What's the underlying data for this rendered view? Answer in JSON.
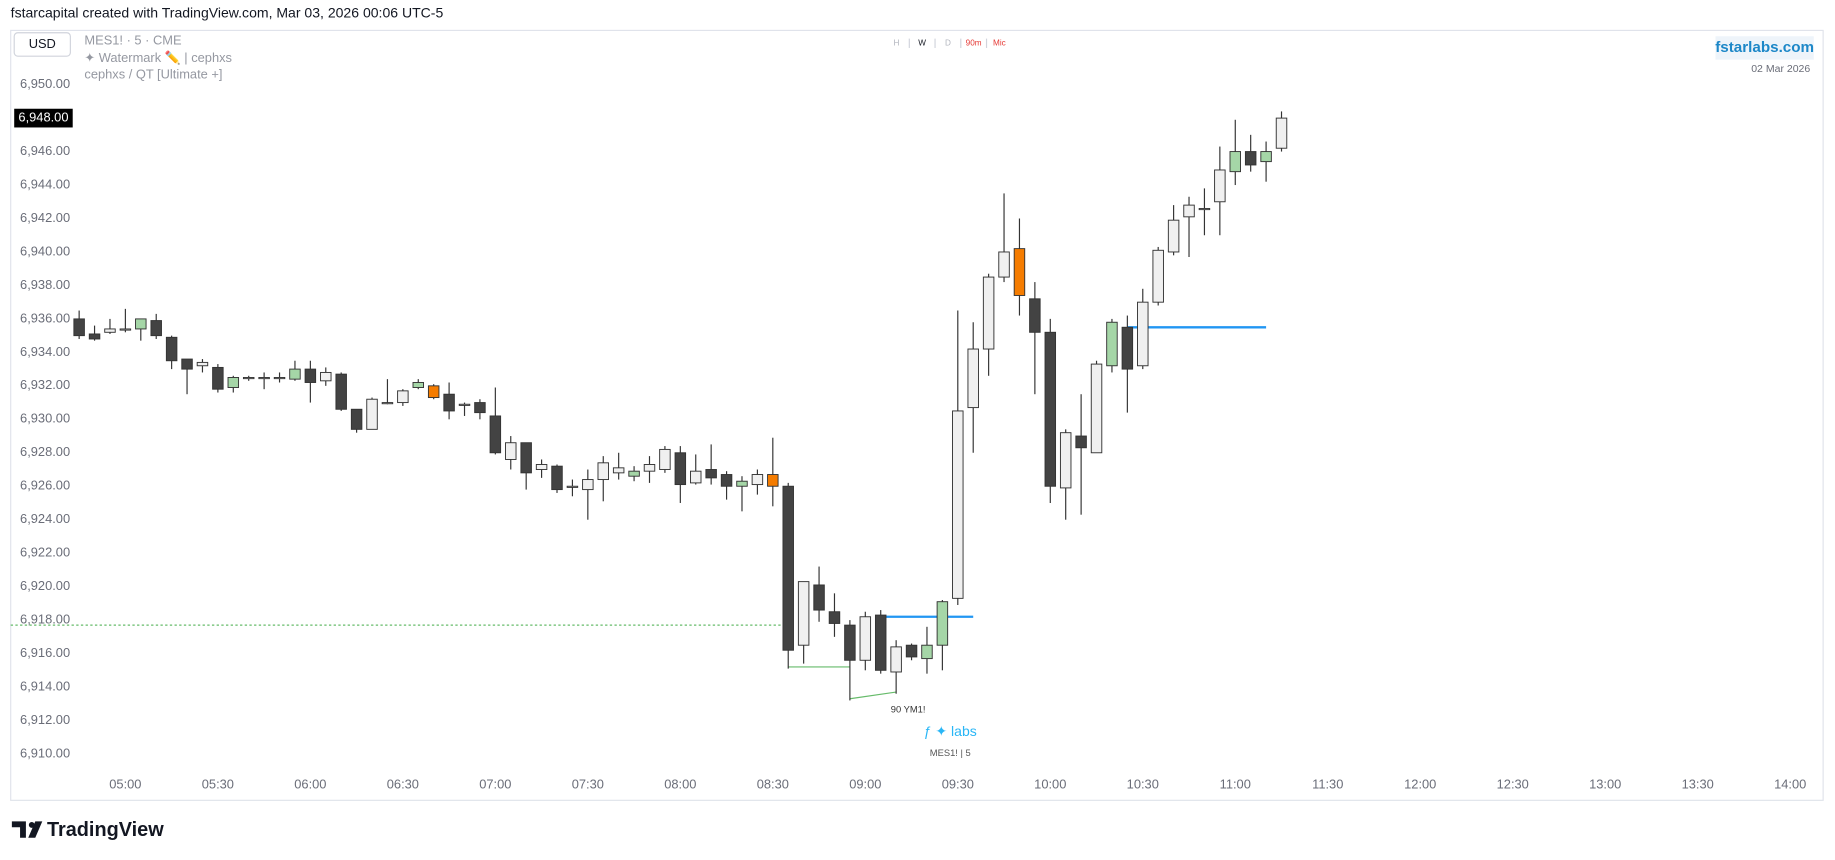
{
  "header": {
    "title": "fstarcapital created with TradingView.com, Mar 03, 2026 00:06 UTC-5",
    "currency": "USD",
    "symbol": "MES1! · 5 · CME",
    "watermark": "✦ Watermark ✏️ | cephxs",
    "indicator": "cephxs / QT [Ultimate +]",
    "timeframes": [
      "H",
      "W",
      "D",
      "90m",
      "Mic"
    ],
    "site": "fstarlabs.com",
    "date": "02 Mar 2026"
  },
  "footer": {
    "brand": "TradingView"
  },
  "chart_data": {
    "type": "candlestick",
    "x": [
      285,
      290,
      295,
      300,
      305,
      310,
      315,
      320,
      325,
      330,
      335,
      340,
      345,
      350,
      355,
      360,
      365,
      370,
      375,
      380,
      385,
      390,
      395,
      400,
      405,
      410,
      415,
      420,
      425,
      430,
      435,
      440,
      445,
      450,
      455,
      460,
      465,
      470,
      475,
      480,
      485,
      490,
      495,
      500,
      505,
      510,
      515,
      520,
      525,
      530,
      535,
      540,
      545,
      550,
      555,
      560,
      565,
      570,
      575,
      580,
      585,
      590,
      595,
      600,
      605,
      610,
      615,
      620,
      625,
      630,
      635,
      640,
      645,
      650,
      655,
      660,
      665,
      670,
      675
    ],
    "open": [
      6936.0,
      6935.1,
      6935.2,
      6935.4,
      6935.4,
      6935.9,
      6934.9,
      6933.6,
      6933.2,
      6933.1,
      6931.9,
      6932.5,
      6932.5,
      6932.5,
      6932.4,
      6933.0,
      6932.3,
      6932.7,
      6930.6,
      6929.4,
      6931.0,
      6931.0,
      6931.9,
      6932.0,
      6931.5,
      6930.9,
      6931.0,
      6930.2,
      6927.6,
      6928.6,
      6927.0,
      6927.2,
      6926.0,
      6925.8,
      6926.4,
      6926.8,
      6926.6,
      6926.9,
      6927.0,
      6928.0,
      6926.2,
      6927.0,
      6926.7,
      6926.0,
      6926.1,
      6926.7,
      6926.0,
      6916.5,
      6920.1,
      6918.5,
      6917.7,
      6915.6,
      6918.3,
      6914.9,
      6916.5,
      6915.7,
      6916.5,
      6919.3,
      6930.7,
      6934.2,
      6938.5,
      6940.2,
      6937.2,
      6935.2,
      6925.9,
      6929.0,
      6928.0,
      6933.2,
      6935.5,
      6933.2,
      6937.0,
      6940.0,
      6942.1,
      6942.6,
      6943.0,
      6944.8,
      6946.0,
      6945.4,
      6946.2
    ],
    "high": [
      6936.5,
      6935.6,
      6936.0,
      6936.6,
      6936.0,
      6936.3,
      6935.0,
      6933.6,
      6933.6,
      6933.3,
      6932.6,
      6932.6,
      6932.8,
      6932.8,
      6933.5,
      6933.5,
      6933.1,
      6932.8,
      6930.6,
      6931.3,
      6932.4,
      6931.8,
      6932.4,
      6932.1,
      6932.2,
      6931.0,
      6931.2,
      6931.9,
      6929.0,
      6928.6,
      6927.6,
      6927.3,
      6926.4,
      6927.0,
      6927.8,
      6928.0,
      6927.2,
      6927.8,
      6928.4,
      6928.4,
      6927.9,
      6928.5,
      6926.9,
      6926.6,
      6927.0,
      6928.9,
      6926.2,
      6920.3,
      6921.2,
      6919.6,
      6918.0,
      6918.5,
      6918.6,
      6916.8,
      6916.6,
      6917.6,
      6919.2,
      6936.5,
      6935.8,
      6938.7,
      6943.5,
      6942.0,
      6938.2,
      6936.0,
      6929.4,
      6931.5,
      6933.5,
      6936.0,
      6936.2,
      6937.8,
      6940.3,
      6942.8,
      6943.3,
      6943.8,
      6946.3,
      6947.9,
      6947.0,
      6946.6,
      6948.4
    ],
    "low": [
      6934.8,
      6934.7,
      6935.1,
      6935.2,
      6934.7,
      6934.8,
      6933.0,
      6931.5,
      6932.8,
      6931.6,
      6931.6,
      6932.3,
      6931.8,
      6932.2,
      6932.3,
      6931.0,
      6932.0,
      6930.5,
      6929.2,
      6929.4,
      6930.9,
      6930.8,
      6931.8,
      6931.2,
      6930.0,
      6930.2,
      6930.0,
      6927.9,
      6927.0,
      6925.8,
      6926.5,
      6925.6,
      6925.4,
      6924.0,
      6925.1,
      6926.4,
      6926.3,
      6926.2,
      6926.8,
      6925.0,
      6926.1,
      6926.1,
      6925.2,
      6924.5,
      6925.5,
      6924.8,
      6915.1,
      6915.4,
      6917.9,
      6917.0,
      6913.2,
      6915.0,
      6914.8,
      6913.6,
      6915.6,
      6914.8,
      6915.0,
      6918.9,
      6928.0,
      6932.6,
      6938.2,
      6936.2,
      6931.5,
      6925.0,
      6924.0,
      6924.3,
      6928.0,
      6932.8,
      6930.4,
      6933.0,
      6936.8,
      6939.8,
      6939.7,
      6941.0,
      6941.0,
      6944.0,
      6944.8,
      6944.2,
      6946.0
    ],
    "close": [
      6935.0,
      6934.8,
      6935.4,
      6935.4,
      6936.0,
      6935.0,
      6933.5,
      6933.0,
      6933.4,
      6931.8,
      6932.5,
      6932.5,
      6932.5,
      6932.5,
      6933.0,
      6932.2,
      6932.8,
      6930.6,
      6929.4,
      6931.2,
      6931.0,
      6931.7,
      6932.2,
      6931.3,
      6930.5,
      6930.9,
      6930.4,
      6928.0,
      6928.6,
      6926.8,
      6927.3,
      6925.8,
      6926.0,
      6926.4,
      6927.4,
      6927.1,
      6926.9,
      6927.3,
      6928.2,
      6926.1,
      6926.9,
      6926.5,
      6926.0,
      6926.3,
      6926.7,
      6926.0,
      6916.2,
      6920.3,
      6918.6,
      6917.8,
      6915.6,
      6918.2,
      6915.0,
      6916.4,
      6915.8,
      6916.5,
      6919.1,
      6930.5,
      6934.2,
      6938.5,
      6940.0,
      6937.4,
      6935.2,
      6926.0,
      6929.2,
      6928.3,
      6933.3,
      6935.8,
      6933.0,
      6937.0,
      6940.1,
      6941.9,
      6942.8,
      6942.6,
      6944.9,
      6946.0,
      6945.2,
      6946.0,
      6948.0
    ],
    "colors": [
      "#434343",
      "#434343",
      "#f0f0f0",
      "#f0f0f0",
      "#a5d6a7",
      "#434343",
      "#434343",
      "#434343",
      "#f0f0f0",
      "#434343",
      "#a5d6a7",
      "#f0f0f0",
      "#f0f0f0",
      "#f0f0f0",
      "#a5d6a7",
      "#434343",
      "#f0f0f0",
      "#434343",
      "#434343",
      "#f0f0f0",
      "#f0f0f0",
      "#f0f0f0",
      "#a5d6a7",
      "#f57c00",
      "#434343",
      "#f0f0f0",
      "#434343",
      "#434343",
      "#f0f0f0",
      "#434343",
      "#f0f0f0",
      "#434343",
      "#f0f0f0",
      "#f0f0f0",
      "#f0f0f0",
      "#f0f0f0",
      "#a5d6a7",
      "#f0f0f0",
      "#f0f0f0",
      "#434343",
      "#f0f0f0",
      "#434343",
      "#434343",
      "#a5d6a7",
      "#f0f0f0",
      "#f57c00",
      "#434343",
      "#f0f0f0",
      "#434343",
      "#434343",
      "#434343",
      "#f0f0f0",
      "#434343",
      "#f0f0f0",
      "#434343",
      "#a5d6a7",
      "#a5d6a7",
      "#f0f0f0",
      "#f0f0f0",
      "#f0f0f0",
      "#f0f0f0",
      "#f57c00",
      "#434343",
      "#434343",
      "#f0f0f0",
      "#434343",
      "#f0f0f0",
      "#a5d6a7",
      "#434343",
      "#f0f0f0",
      "#f0f0f0",
      "#f0f0f0",
      "#f0f0f0",
      "#f0f0f0",
      "#f0f0f0",
      "#a5d6a7",
      "#434343",
      "#a5d6a7",
      "#f0f0f0"
    ],
    "lines": [
      {
        "color": "#2196f3",
        "x": [
          545,
          575
        ],
        "values": [
          6918.2,
          6918.2
        ]
      },
      {
        "color": "#2196f3",
        "x": [
          625,
          670
        ],
        "values": [
          6935.5,
          6935.5
        ]
      },
      {
        "color": "#66bb6a",
        "dashed": true,
        "x": [
          262.8,
          515
        ],
        "values": [
          6917.7,
          6917.7
        ]
      },
      {
        "color": "#66bb6a",
        "x": [
          515,
          535
        ],
        "values": [
          6915.2,
          6915.2
        ]
      },
      {
        "color": "#66bb6a",
        "x": [
          535,
          550
        ],
        "values": [
          6913.3,
          6913.7
        ]
      }
    ],
    "annotations": [
      "90 YM1!",
      "ƒ ✦ labs",
      "MES1! | 5"
    ],
    "last_price": {
      "value": 6948.0,
      "label": "6,948.00"
    },
    "xlim": [
      262.8,
      850.3
    ],
    "ylim": [
      6907.3,
      6953.1
    ],
    "xticks": [
      {
        "value": 300,
        "label": "05:00"
      },
      {
        "value": 330,
        "label": "05:30"
      },
      {
        "value": 360,
        "label": "06:00"
      },
      {
        "value": 390,
        "label": "06:30"
      },
      {
        "value": 420,
        "label": "07:00"
      },
      {
        "value": 450,
        "label": "07:30"
      },
      {
        "value": 480,
        "label": "08:00"
      },
      {
        "value": 510,
        "label": "08:30"
      },
      {
        "value": 540,
        "label": "09:00"
      },
      {
        "value": 570,
        "label": "09:30"
      },
      {
        "value": 600,
        "label": "10:00"
      },
      {
        "value": 630,
        "label": "10:30"
      },
      {
        "value": 660,
        "label": "11:00"
      },
      {
        "value": 690,
        "label": "11:30"
      },
      {
        "value": 720,
        "label": "12:00"
      },
      {
        "value": 750,
        "label": "12:30"
      },
      {
        "value": 780,
        "label": "13:00"
      },
      {
        "value": 810,
        "label": "13:30"
      },
      {
        "value": 840,
        "label": "14:00"
      }
    ],
    "yticks": [
      {
        "value": 6910,
        "label": "6,910.00"
      },
      {
        "value": 6912,
        "label": "6,912.00"
      },
      {
        "value": 6914,
        "label": "6,914.00"
      },
      {
        "value": 6916,
        "label": "6,916.00"
      },
      {
        "value": 6918,
        "label": "6,918.00"
      },
      {
        "value": 6920,
        "label": "6,920.00"
      },
      {
        "value": 6922,
        "label": "6,922.00"
      },
      {
        "value": 6924,
        "label": "6,924.00"
      },
      {
        "value": 6926,
        "label": "6,926.00"
      },
      {
        "value": 6928,
        "label": "6,928.00"
      },
      {
        "value": 6930,
        "label": "6,930.00"
      },
      {
        "value": 6932,
        "label": "6,932.00"
      },
      {
        "value": 6934,
        "label": "6,934.00"
      },
      {
        "value": 6936,
        "label": "6,936.00"
      },
      {
        "value": 6938,
        "label": "6,938.00"
      },
      {
        "value": 6940,
        "label": "6,940.00"
      },
      {
        "value": 6942,
        "label": "6,942.00"
      },
      {
        "value": 6944,
        "label": "6,944.00"
      },
      {
        "value": 6946,
        "label": "6,946.00"
      },
      {
        "value": 6950,
        "label": "6,950.00"
      }
    ],
    "grid": false
  }
}
